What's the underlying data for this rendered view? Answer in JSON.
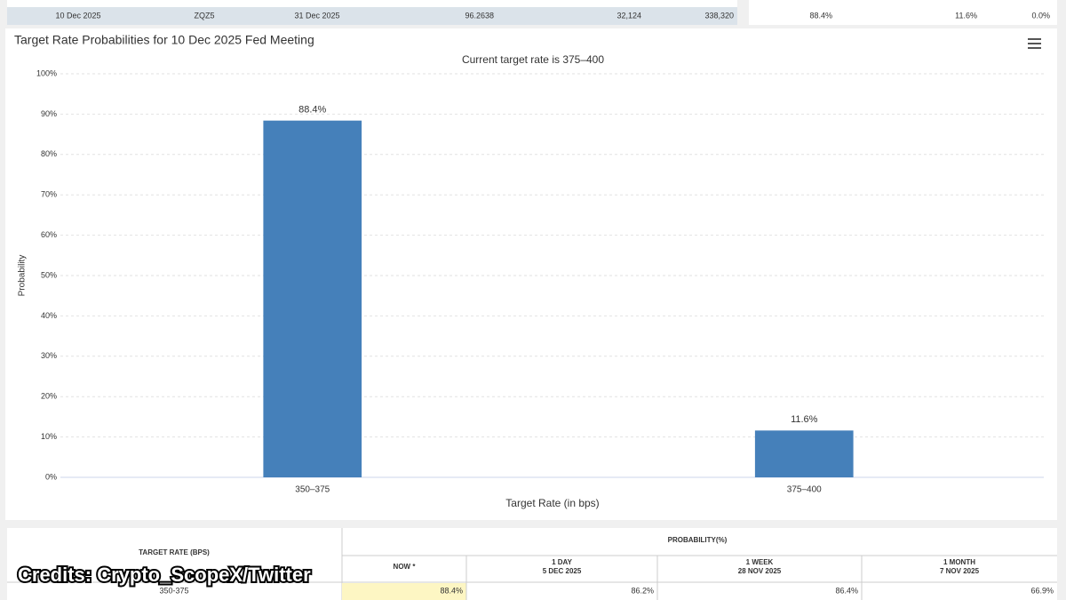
{
  "top_table": {
    "row": [
      "10 Dec 2025",
      "ZQZ5",
      "31 Dec 2025",
      "96.2638",
      "32,124",
      "338,320"
    ],
    "probabilities": [
      "88.4%",
      "11.6%",
      "0.0%"
    ]
  },
  "chart_data": {
    "type": "bar",
    "title": "Target Rate Probabilities for 10 Dec 2025 Fed Meeting",
    "subtitle": "Current target rate is 375–400",
    "y_label": "Probability",
    "x_label": "Target Rate (in bps)",
    "categories": [
      "350–375",
      "375–400"
    ],
    "values": [
      88.4,
      11.6
    ],
    "value_labels": [
      "88.4%",
      "11.6%"
    ],
    "color": "#4580ba",
    "ylim": [
      0,
      100
    ],
    "yticks": [
      {
        "value": 0,
        "label": "0%"
      },
      {
        "value": 10,
        "label": "10%"
      },
      {
        "value": 20,
        "label": "20%"
      },
      {
        "value": 30,
        "label": "30%"
      },
      {
        "value": 40,
        "label": "40%"
      },
      {
        "value": 50,
        "label": "50%"
      },
      {
        "value": 60,
        "label": "60%"
      },
      {
        "value": 70,
        "label": "70%"
      },
      {
        "value": 80,
        "label": "80%"
      },
      {
        "value": 90,
        "label": "90%"
      },
      {
        "value": 100,
        "label": "100%"
      }
    ],
    "grid": true
  },
  "bottom_table": {
    "rate_header": "TARGET RATE (BPS)",
    "prob_header": "PROBABILITY(%)",
    "columns": [
      [
        "NOW *"
      ],
      [
        "1 DAY",
        "5 DEC 2025"
      ],
      [
        "1 WEEK",
        "28 NOV 2025"
      ],
      [
        "1 MONTH",
        "7 NOV 2025"
      ]
    ],
    "row": [
      "350-375",
      "88.4%",
      "86.2%",
      "86.4%",
      "66.9%"
    ]
  },
  "credits": "Credits: Crypto_ScopeX/Twitter"
}
